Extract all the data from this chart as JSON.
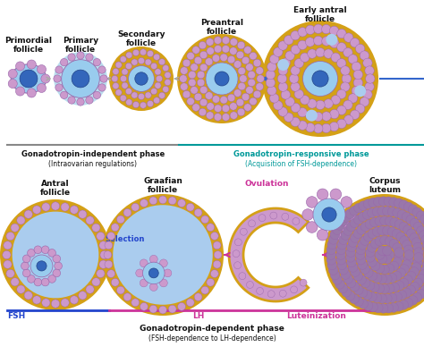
{
  "bg_color": "#ffffff",
  "purple_light": "#cc99cc",
  "purple_mid": "#bb88bb",
  "purple_dark": "#9966aa",
  "zona_color": "#d4a017",
  "nucleus_blue": "#3366bb",
  "cytoplasm_blue": "#99ccee",
  "cytoplasm_light": "#bbddee",
  "antrum_color": "#aaccee",
  "arrow_gray": "#aaaaaa",
  "arrow_blue": "#3366cc",
  "arrow_magenta": "#cc3399",
  "text_black": "#111111",
  "text_blue": "#2244cc",
  "text_cyan": "#009999",
  "text_magenta": "#cc3399",
  "line_gray": "#888888",
  "line_cyan": "#009999",
  "line_magenta": "#cc3399",
  "line_blue": "#2244cc",
  "corpus_purple": "#9977aa",
  "title1": "Gonadotropin-independent phase",
  "sub1": "(Intraovarian regulations)",
  "title2": "Gonadotropin-responsive phase",
  "sub2": "(Acquisition of FSH-dependence)",
  "title3": "Gonadotropin-dependent phase",
  "sub3": "(FSH-dependence to LH-dependence)"
}
